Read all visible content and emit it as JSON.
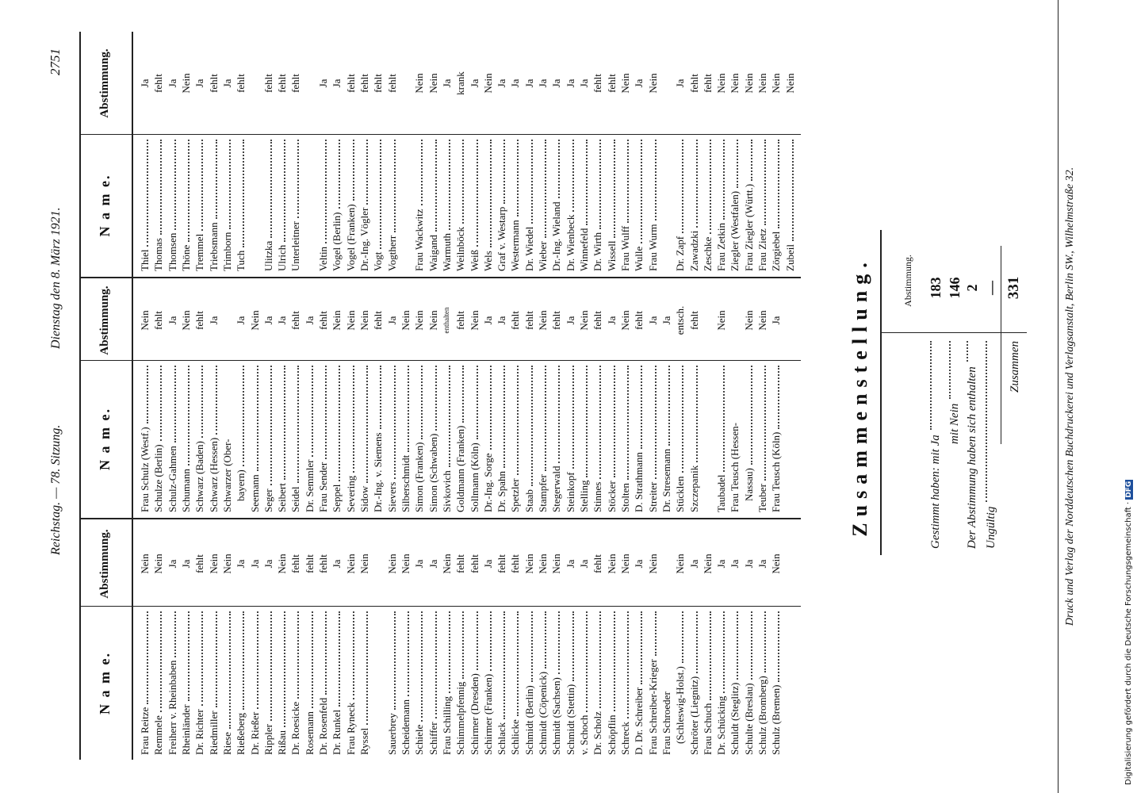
{
  "header": {
    "left": "Reichstag. — 78. Sitzung.",
    "center": "Dienstag den 8. März 1921.",
    "page_number": "2751"
  },
  "columns": [
    {
      "name_heading": "N a m e.",
      "vote_heading": "Abstimmung.",
      "groups": [
        [
          {
            "name": "Frau Reitze",
            "vote": "Nein"
          },
          {
            "name": "Remmele",
            "vote": "Nein"
          },
          {
            "name": "Freiherr v. Rheinbaben",
            "vote": "Ja"
          },
          {
            "name": "Rheinländer",
            "vote": "Ja"
          },
          {
            "name": "Dr. Richter",
            "vote": "fehlt"
          },
          {
            "name": "Riedmiller",
            "vote": "Nein"
          },
          {
            "name": "Riese",
            "vote": "Nein"
          },
          {
            "name": "Rießeberg",
            "vote": "Ja"
          },
          {
            "name": "Dr. Rießer",
            "vote": "Ja"
          },
          {
            "name": "Rippler",
            "vote": "Ja"
          },
          {
            "name": "Rißau",
            "vote": "Nein"
          },
          {
            "name": "Dr. Roesicke",
            "vote": "fehlt"
          },
          {
            "name": "Rosemann",
            "vote": "fehlt"
          },
          {
            "name": "Dr. Rosenfeld",
            "vote": "fehlt"
          },
          {
            "name": "Dr. Runkel",
            "vote": "Ja"
          },
          {
            "name": "Frau Ryneck",
            "vote": "Nein"
          },
          {
            "name": "Ryssel",
            "vote": "Nein"
          }
        ],
        [
          {
            "name": "Sauerbrey",
            "vote": "Nein"
          },
          {
            "name": "Scheidemann",
            "vote": "Nein"
          },
          {
            "name": "Schiele",
            "vote": "Ja"
          },
          {
            "name": "Schiffer",
            "vote": "Ja"
          },
          {
            "name": "Frau Schilling",
            "vote": "Nein"
          },
          {
            "name": "Schimmelpfennig",
            "vote": "fehlt"
          },
          {
            "name": "Schirmer (Dresden)",
            "vote": "fehlt"
          },
          {
            "name": "Schirmer (Franken)",
            "vote": "Ja"
          },
          {
            "name": "Schlack",
            "vote": "fehlt"
          },
          {
            "name": "Schlicke",
            "vote": "fehlt"
          },
          {
            "name": "Schmidt (Berlin)",
            "vote": "Nein"
          },
          {
            "name": "Schmidt (Cöpenick)",
            "vote": "Nein"
          },
          {
            "name": "Schmidt (Sachsen)",
            "vote": "Nein"
          },
          {
            "name": "Schmidt (Stettin)",
            "vote": "Ja"
          },
          {
            "name": "v. Schoch",
            "vote": "Ja"
          },
          {
            "name": "Dr. Scholz",
            "vote": "fehlt"
          },
          {
            "name": "Schöpflin",
            "vote": "Nein"
          },
          {
            "name": "Schreck",
            "vote": "Nein"
          },
          {
            "name": "D. Dr. Schreiber",
            "vote": "Ja"
          },
          {
            "name": "Frau Schreiber-Krieger",
            "vote": "Nein"
          },
          {
            "name": "Frau Schroeder"
          },
          {
            "name": "(Schleswig-Holst.)",
            "vote": "Nein"
          },
          {
            "name": "Schröter (Liegnitz)",
            "vote": "Ja"
          },
          {
            "name": "Frau Schuch",
            "vote": "Nein"
          },
          {
            "name": "Dr. Schücking",
            "vote": "Ja"
          },
          {
            "name": "Schuldt (Steglitz)",
            "vote": "Ja"
          },
          {
            "name": "Schulte (Breslau)",
            "vote": "Ja"
          },
          {
            "name": "Schulz (Bromberg)",
            "vote": "Ja"
          },
          {
            "name": "Schulz (Bremen)",
            "vote": "Nein"
          }
        ]
      ]
    },
    {
      "name_heading": "N a m e.",
      "vote_heading": "Abstimmung.",
      "groups": [
        [
          {
            "name": "Frau Schulz (Westf.)",
            "vote": "Nein"
          },
          {
            "name": "Schulze (Berlin)",
            "vote": "fehlt"
          },
          {
            "name": "Schulz-Gahmen",
            "vote": "Ja"
          },
          {
            "name": "Schumann",
            "vote": "Nein"
          },
          {
            "name": "Schwarz (Baden)",
            "vote": "fehlt"
          },
          {
            "name": "Schwarz (Hessen)",
            "vote": "Ja"
          },
          {
            "name": "Schwarzer (Ober-"
          },
          {
            "name": "bayern)",
            "vote": "Ja"
          },
          {
            "name": "Seemann",
            "vote": "Nein"
          },
          {
            "name": "Seger",
            "vote": "Ja"
          },
          {
            "name": "Seibert",
            "vote": "Ja"
          },
          {
            "name": "Seidel",
            "vote": "fehlt"
          },
          {
            "name": "Dr. Semmler",
            "vote": "Ja"
          },
          {
            "name": "Frau Sender",
            "vote": "fehlt"
          },
          {
            "name": "Seppel",
            "vote": "Nein"
          },
          {
            "name": "Severing",
            "vote": "Nein"
          },
          {
            "name": "Sidow",
            "vote": "Nein"
          },
          {
            "name": "Dr.-Ing. v. Siemens",
            "vote": "fehlt"
          },
          {
            "name": "Sievers",
            "vote": "Ja"
          },
          {
            "name": "Silberschmidt",
            "vote": "Nein"
          },
          {
            "name": "Simon (Franken)",
            "vote": "Nein"
          },
          {
            "name": "Simon (Schwaben)",
            "vote": "Nein"
          },
          {
            "name": "Sivkovich",
            "vote": "enthalten"
          },
          {
            "name": "Goldmann (Franken)",
            "vote": "fehlt"
          },
          {
            "name": "Sollmann (Köln)",
            "vote": "Nein"
          },
          {
            "name": "Dr.-Ing. Sorge",
            "vote": "Ja"
          },
          {
            "name": "Dr. Spahn",
            "vote": "Ja"
          },
          {
            "name": "Spetzler",
            "vote": "fehlt"
          },
          {
            "name": "Staab",
            "vote": "fehlt"
          },
          {
            "name": "Stampfer",
            "vote": "Nein"
          },
          {
            "name": "Stegerwald",
            "vote": "fehlt"
          },
          {
            "name": "Steinkopf",
            "vote": "Ja"
          },
          {
            "name": "Stelling",
            "vote": "Nein"
          },
          {
            "name": "Stinnes",
            "vote": "fehlt"
          },
          {
            "name": "Stöcker",
            "vote": "Ja"
          },
          {
            "name": "Stolten",
            "vote": "Nein"
          },
          {
            "name": "D. Strathmann",
            "vote": "fehlt"
          },
          {
            "name": "Streiter",
            "vote": "Ja"
          },
          {
            "name": "Dr. Stresemann",
            "vote": "Ja"
          },
          {
            "name": "Stücklen",
            "vote": "entsch."
          },
          {
            "name": "Szczepanik",
            "vote": "fehlt"
          }
        ],
        [
          {
            "name": "Taubadel",
            "vote": "Nein"
          },
          {
            "name": "Frau Teusch (Hessen-"
          },
          {
            "name": "Nassau)",
            "vote": "Nein"
          },
          {
            "name": "Teuber",
            "vote": "Nein"
          },
          {
            "name": "Frau Teusch (Köln)",
            "vote": "Ja"
          }
        ]
      ]
    },
    {
      "name_heading": "N a m e.",
      "vote_heading": "Abstimmung.",
      "groups": [
        [
          {
            "name": "Thiel",
            "vote": "Ja"
          },
          {
            "name": "Thomas",
            "vote": "fehlt"
          },
          {
            "name": "Thomsen",
            "vote": "Ja"
          },
          {
            "name": "Thöne",
            "vote": "Nein"
          },
          {
            "name": "Tremmel",
            "vote": "Ja"
          },
          {
            "name": "Triebsmann",
            "vote": "fehlt"
          },
          {
            "name": "Trimborn",
            "vote": "Ja"
          },
          {
            "name": "Tuch",
            "vote": "fehlt"
          }
        ],
        [
          {
            "name": "Ulitzka",
            "vote": "fehlt"
          },
          {
            "name": "Ulrich",
            "vote": "fehlt"
          },
          {
            "name": "Unterleitner",
            "vote": "fehlt"
          }
        ],
        [
          {
            "name": "Veltin",
            "vote": "Ja"
          },
          {
            "name": "Vogel (Berlin)",
            "vote": "Ja"
          },
          {
            "name": "Vogel (Franken)",
            "vote": "fehlt"
          },
          {
            "name": "Dr.-Ing. Vögler",
            "vote": "fehlt"
          },
          {
            "name": "Vogt",
            "vote": "fehlt"
          },
          {
            "name": "Vogtherr",
            "vote": "fehlt"
          }
        ],
        [
          {
            "name": "Frau Wackwitz",
            "vote": "Nein"
          },
          {
            "name": "Waigand",
            "vote": "Nein"
          },
          {
            "name": "Warmuth",
            "vote": "Ja"
          },
          {
            "name": "Weilnböck",
            "vote": "krank"
          },
          {
            "name": "Weiß",
            "vote": "Ja"
          },
          {
            "name": "Wels",
            "vote": "Nein"
          },
          {
            "name": "Graf v. Westarp",
            "vote": "Ja"
          },
          {
            "name": "Westermann",
            "vote": "Ja"
          },
          {
            "name": "Dr. Wiedel",
            "vote": "Ja"
          },
          {
            "name": "Wieber",
            "vote": "Ja"
          },
          {
            "name": "Dr.-Ing. Wieland",
            "vote": "Ja"
          },
          {
            "name": "Dr. Wienbeck",
            "vote": "Ja"
          },
          {
            "name": "Winnefeld",
            "vote": "Ja"
          },
          {
            "name": "Dr. Wirth",
            "vote": "fehlt"
          },
          {
            "name": "Wissell",
            "vote": "fehlt"
          },
          {
            "name": "Frau Wulff",
            "vote": "Nein"
          },
          {
            "name": "Wulle",
            "vote": "Ja"
          },
          {
            "name": "Frau Wurm",
            "vote": "Nein"
          }
        ],
        [
          {
            "name": "Dr. Zapf",
            "vote": "Ja"
          },
          {
            "name": "Zawadzki",
            "vote": "fehlt"
          },
          {
            "name": "Zeschke",
            "vote": "fehlt"
          },
          {
            "name": "Frau Zetkin",
            "vote": "Nein"
          },
          {
            "name": "Ziegler (Westfalen)",
            "vote": "Nein"
          },
          {
            "name": "Frau Ziegler (Württ.)",
            "vote": "Nein"
          },
          {
            "name": "Frau Zietz",
            "vote": "Nein"
          },
          {
            "name": "Zörgiebel",
            "vote": "Nein"
          },
          {
            "name": "Zubeil",
            "vote": "Nein"
          }
        ]
      ]
    }
  ],
  "summary": {
    "title": "Zusammenstellung.",
    "column_heading": "Abstimmung.",
    "rows": [
      {
        "label": "Gestimmt haben: mit Ja",
        "value": 183
      },
      {
        "label": "mit Nein",
        "value": 146
      },
      {
        "label": "Der Abstimmung haben sich enthalten",
        "value": 2
      },
      {
        "label": "Ungültig",
        "value": "—"
      }
    ],
    "total": {
      "label": "Zusammen",
      "value": 331
    }
  },
  "footer": "Druck und Verlag der Norddeutschen Buchdruckerei und Verlagsanstalt, Berlin SW., Wilhelmstraße 32.",
  "dfg": {
    "text": "Digitalisierung gefördert durch die Deutsche Forschungsgemeinschaft ·",
    "badge": "DFG"
  }
}
